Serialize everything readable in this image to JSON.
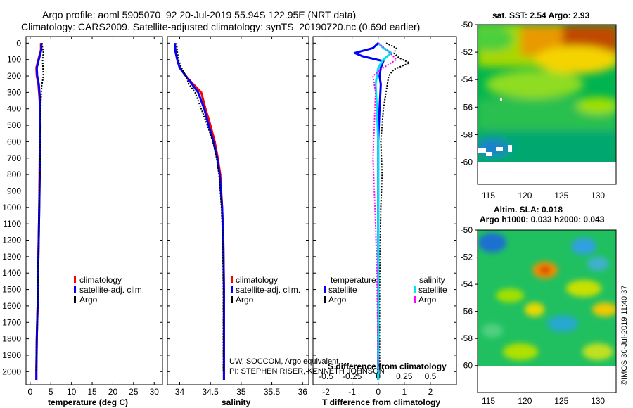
{
  "header": {
    "title_line1": "Argo profile: aoml 5905070_92 20-Jul-2019 55.94S 122.95E (NRT data)",
    "title_line2": "Climatology: CARS2009. Satellite-adjusted climatology: synTS_20190720.nc (0.69d earlier)"
  },
  "colors": {
    "climatology": "#ff0000",
    "satellite": "#0000ff",
    "argo": "#000000",
    "sal_satellite": "#00e5ee",
    "sal_argo": "#ff00ff"
  },
  "chart_data": [
    {
      "type": "line",
      "id": "temperature",
      "xlabel": "temperature (deg C)",
      "xlim": [
        -1,
        32
      ],
      "xticks": [
        0,
        5,
        10,
        15,
        20,
        25,
        30
      ],
      "ylim": [
        -40,
        2080
      ],
      "yticks": [
        0,
        100,
        200,
        300,
        400,
        500,
        600,
        700,
        800,
        900,
        1000,
        1100,
        1200,
        1300,
        1400,
        1500,
        1600,
        1700,
        1800,
        1900,
        2000
      ],
      "legend": [
        "climatology",
        "satellite-adj. clim.",
        "Argo"
      ],
      "series": [
        {
          "name": "climatology",
          "color": "#ff0000",
          "points": [
            [
              2.6,
              0
            ],
            [
              2.6,
              40
            ],
            [
              2.1,
              90
            ],
            [
              1.5,
              150
            ],
            [
              1.6,
              200
            ],
            [
              2.0,
              250
            ],
            [
              2.3,
              350
            ],
            [
              2.4,
              500
            ],
            [
              2.3,
              700
            ],
            [
              2.2,
              1000
            ],
            [
              2.0,
              1300
            ],
            [
              1.8,
              1600
            ],
            [
              1.6,
              1800
            ],
            [
              1.5,
              2000
            ],
            [
              1.5,
              2050
            ]
          ]
        },
        {
          "name": "satellite-adj. clim.",
          "color": "#0000ff",
          "points": [
            [
              2.7,
              0
            ],
            [
              2.7,
              40
            ],
            [
              2.2,
              90
            ],
            [
              1.6,
              150
            ],
            [
              1.7,
              200
            ],
            [
              2.1,
              250
            ],
            [
              2.4,
              350
            ],
            [
              2.5,
              500
            ],
            [
              2.4,
              700
            ],
            [
              2.2,
              1000
            ],
            [
              2.0,
              1300
            ],
            [
              1.8,
              1600
            ],
            [
              1.6,
              1800
            ],
            [
              1.5,
              2000
            ],
            [
              1.5,
              2050
            ]
          ]
        },
        {
          "name": "Argo",
          "color": "#000000",
          "points": [
            [
              2.9,
              0
            ],
            [
              3.0,
              30
            ],
            [
              3.2,
              60
            ],
            [
              3.0,
              100
            ],
            [
              3.1,
              150
            ],
            [
              3.2,
              200
            ],
            [
              2.8,
              260
            ],
            [
              2.6,
              350
            ],
            [
              2.5,
              500
            ],
            [
              2.4,
              700
            ],
            [
              2.2,
              1000
            ],
            [
              2.0,
              1300
            ],
            [
              1.8,
              1600
            ],
            [
              1.6,
              1800
            ],
            [
              1.5,
              2000
            ]
          ]
        }
      ]
    },
    {
      "type": "line",
      "id": "salinity",
      "xlabel": "salinity",
      "xlim": [
        33.8,
        36.1
      ],
      "xticks": [
        34,
        34.5,
        35,
        35.5,
        36
      ],
      "ylim": [
        -40,
        2080
      ],
      "legend": [
        "climatology",
        "satellite-adj. clim.",
        "Argo"
      ],
      "series": [
        {
          "name": "climatology",
          "color": "#ff0000",
          "points": [
            [
              33.92,
              0
            ],
            [
              33.93,
              50
            ],
            [
              33.96,
              100
            ],
            [
              34.0,
              150
            ],
            [
              34.1,
              200
            ],
            [
              34.22,
              250
            ],
            [
              34.35,
              300
            ],
            [
              34.42,
              400
            ],
            [
              34.5,
              500
            ],
            [
              34.57,
              600
            ],
            [
              34.62,
              700
            ],
            [
              34.66,
              800
            ],
            [
              34.69,
              1000
            ],
            [
              34.71,
              1200
            ],
            [
              34.72,
              1500
            ],
            [
              34.72,
              2000
            ],
            [
              34.72,
              2050
            ]
          ]
        },
        {
          "name": "satellite-adj. clim.",
          "color": "#0000ff",
          "points": [
            [
              33.92,
              0
            ],
            [
              33.93,
              50
            ],
            [
              33.96,
              100
            ],
            [
              34.0,
              150
            ],
            [
              34.1,
              200
            ],
            [
              34.2,
              250
            ],
            [
              34.3,
              300
            ],
            [
              34.4,
              400
            ],
            [
              34.47,
              500
            ],
            [
              34.55,
              600
            ],
            [
              34.61,
              700
            ],
            [
              34.65,
              800
            ],
            [
              34.69,
              1000
            ],
            [
              34.71,
              1200
            ],
            [
              34.72,
              1500
            ],
            [
              34.72,
              2000
            ],
            [
              34.72,
              2050
            ]
          ]
        },
        {
          "name": "Argo",
          "color": "#000000",
          "points": [
            [
              33.95,
              0
            ],
            [
              33.96,
              50
            ],
            [
              33.98,
              100
            ],
            [
              34.03,
              150
            ],
            [
              34.1,
              200
            ],
            [
              34.15,
              250
            ],
            [
              34.25,
              300
            ],
            [
              34.35,
              400
            ],
            [
              34.45,
              500
            ],
            [
              34.54,
              600
            ],
            [
              34.6,
              700
            ],
            [
              34.64,
              800
            ],
            [
              34.68,
              1000
            ],
            [
              34.7,
              1200
            ],
            [
              34.71,
              1500
            ],
            [
              34.71,
              2000
            ]
          ]
        }
      ],
      "annotation_line1": "UW, SOCCOM, Argo equivalent",
      "annotation_line2": "PI: STEPHEN RISER, KENNETH JOHNSON"
    },
    {
      "type": "line",
      "id": "difference",
      "xlabel": "T difference from climatology",
      "xlabel_top": "S difference from climatology",
      "xlim": [
        -2.5,
        3.0
      ],
      "xticks": [
        -2,
        -1,
        0,
        1,
        2
      ],
      "xticks_top": [
        "-0.5",
        "-0.25",
        "0",
        "0.25",
        "0.5"
      ],
      "xticks_top_pos": [
        -2,
        -1,
        0,
        1,
        2
      ],
      "ylim": [
        -40,
        2080
      ],
      "legend_left_title": "temperature",
      "legend_right_title": "salinity",
      "legend": [
        "satellite",
        "Argo",
        "satellite",
        "Argo"
      ],
      "series": [
        {
          "name": "T satellite",
          "color": "#0000ff",
          "points": [
            [
              0,
              0
            ],
            [
              -0.2,
              30
            ],
            [
              -0.9,
              60
            ],
            [
              -0.6,
              80
            ],
            [
              0.2,
              110
            ],
            [
              0.1,
              150
            ],
            [
              0.05,
              200
            ],
            [
              0.1,
              250
            ],
            [
              0.05,
              400
            ],
            [
              0,
              600
            ],
            [
              0,
              1000
            ],
            [
              0,
              1500
            ],
            [
              0,
              2000
            ],
            [
              0,
              2050
            ]
          ]
        },
        {
          "name": "T Argo",
          "color": "#000000",
          "points": [
            [
              0.3,
              0
            ],
            [
              0.7,
              30
            ],
            [
              0.6,
              60
            ],
            [
              0.8,
              90
            ],
            [
              1.2,
              120
            ],
            [
              0.6,
              160
            ],
            [
              0.4,
              200
            ],
            [
              0.3,
              300
            ],
            [
              0.2,
              400
            ],
            [
              0.1,
              600
            ],
            [
              0.15,
              800
            ],
            [
              0.1,
              1000
            ],
            [
              0.05,
              1500
            ],
            [
              0.05,
              2000
            ]
          ]
        },
        {
          "name": "S satellite",
          "color": "#00e5ee",
          "points": [
            [
              0,
              0
            ],
            [
              0.2,
              30
            ],
            [
              0.5,
              60
            ],
            [
              0.2,
              100
            ],
            [
              0.0,
              150
            ],
            [
              -0.1,
              250
            ],
            [
              -0.05,
              400
            ],
            [
              0,
              600
            ],
            [
              0,
              1000
            ],
            [
              0,
              1500
            ],
            [
              0,
              2000
            ],
            [
              0,
              2050
            ]
          ]
        },
        {
          "name": "S Argo",
          "color": "#ff00ff",
          "points": [
            [
              0,
              0
            ],
            [
              0.4,
              50
            ],
            [
              0.7,
              100
            ],
            [
              0.2,
              150
            ],
            [
              -0.2,
              200
            ],
            [
              -0.1,
              300
            ],
            [
              -0.15,
              500
            ],
            [
              -0.2,
              700
            ],
            [
              -0.15,
              900
            ],
            [
              -0.1,
              1100
            ],
            [
              -0.05,
              1400
            ],
            [
              0,
              2000
            ]
          ]
        }
      ]
    },
    {
      "type": "heatmap",
      "id": "sst_map",
      "title": "sat. SST: 2.54 Argo: 2.93",
      "xticks": [
        115,
        120,
        125,
        130
      ],
      "yticks": [
        -50,
        -52,
        -54,
        -56,
        -58,
        -60
      ],
      "xlim": [
        113.5,
        132.5
      ],
      "ylim": [
        -61,
        -50
      ]
    },
    {
      "type": "heatmap",
      "id": "sla_map",
      "title_line1": "Altim. SLA: 0.018",
      "title_line2": "Argo h1000: 0.033 h2000: 0.043",
      "xticks": [
        115,
        120,
        125,
        130
      ],
      "yticks": [
        -50,
        -52,
        -54,
        -56,
        -58,
        -60
      ],
      "xlim": [
        113.5,
        132.5
      ],
      "ylim": [
        -61,
        -50
      ]
    }
  ],
  "footer": {
    "stamp": "©IMOS 30-Jul-2019 11:40:37"
  }
}
